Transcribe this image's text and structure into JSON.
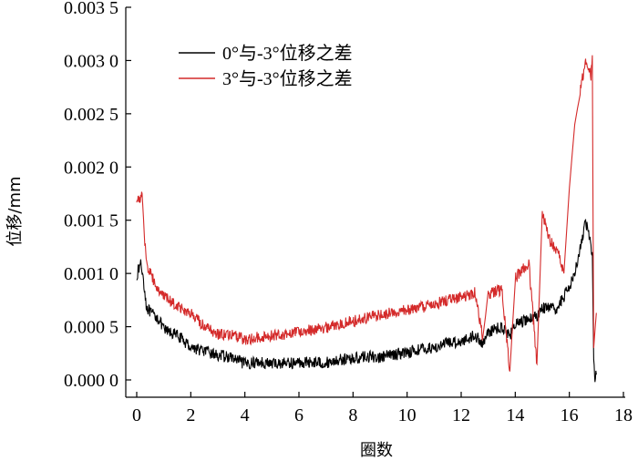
{
  "chart_data": {
    "type": "line",
    "xlabel": "圈数",
    "ylabel": "位移/mm",
    "xlim": [
      0,
      18
    ],
    "ylim": [
      0,
      0.0035
    ],
    "x_ticks": [
      "0",
      "2",
      "4",
      "6",
      "8",
      "10",
      "12",
      "14",
      "16",
      "18"
    ],
    "y_ticks": [
      "0.000 0",
      "0.000 5",
      "0.001 0",
      "0.001 5",
      "0.002 0",
      "0.002 5",
      "0.003 0",
      "0.003 5"
    ],
    "legend_position": "top-left",
    "grid": false,
    "series": [
      {
        "name": "0°与-3°位移之差",
        "color": "#000000",
        "x": [
          0,
          0.15,
          0.25,
          0.35,
          0.5,
          0.8,
          1.0,
          1.5,
          2.0,
          2.5,
          3.0,
          3.5,
          4.0,
          4.5,
          5.0,
          5.5,
          6.0,
          6.5,
          7.0,
          7.5,
          8.0,
          8.5,
          9.0,
          9.5,
          10.0,
          10.5,
          11.0,
          11.5,
          12.0,
          12.5,
          12.8,
          13.0,
          13.5,
          13.8,
          14.0,
          14.3,
          14.5,
          14.8,
          15.0,
          15.5,
          15.8,
          16.0,
          16.3,
          16.6,
          16.85,
          16.9,
          16.95,
          17.0
        ],
        "y": [
          0.00098,
          0.0011,
          0.00095,
          0.0007,
          0.00063,
          0.00058,
          0.00047,
          0.00042,
          0.00031,
          0.00027,
          0.00023,
          0.00021,
          0.00015,
          0.00017,
          0.00015,
          0.00016,
          0.00016,
          0.00017,
          0.00016,
          0.00019,
          0.0002,
          0.00022,
          0.00021,
          0.00024,
          0.00026,
          0.00029,
          0.0003,
          0.00035,
          0.00036,
          0.00042,
          0.00034,
          0.00045,
          0.0005,
          0.00042,
          0.00052,
          0.00055,
          0.00057,
          0.0006,
          0.00068,
          0.00066,
          0.00078,
          0.00088,
          0.0011,
          0.00149,
          0.0012,
          0.0002,
          2e-05,
          5e-05
        ]
      },
      {
        "name": "3°与-3°位移之差",
        "color": "#d42a2a",
        "x": [
          0,
          0.1,
          0.2,
          0.3,
          0.4,
          0.6,
          0.8,
          1.0,
          1.5,
          2.0,
          2.5,
          3.0,
          3.5,
          4.0,
          4.5,
          5.0,
          5.5,
          6.0,
          6.5,
          7.0,
          7.5,
          8.0,
          8.5,
          9.0,
          9.5,
          10.0,
          10.5,
          11.0,
          11.5,
          12.0,
          12.5,
          12.8,
          13.0,
          13.5,
          13.8,
          14.0,
          14.3,
          14.5,
          14.8,
          15.0,
          15.3,
          15.6,
          15.8,
          16.0,
          16.2,
          16.4,
          16.6,
          16.8,
          16.85,
          16.9,
          17.0
        ],
        "y": [
          0.00168,
          0.0017,
          0.00175,
          0.0013,
          0.00105,
          0.00095,
          0.00085,
          0.00078,
          0.0007,
          0.00062,
          0.0005,
          0.00043,
          0.00042,
          0.00038,
          0.0004,
          0.00042,
          0.00043,
          0.00046,
          0.00047,
          0.00049,
          0.00053,
          0.00055,
          0.00058,
          0.00061,
          0.00063,
          0.00066,
          0.00068,
          0.00071,
          0.00075,
          0.00078,
          0.00082,
          0.0004,
          0.0008,
          0.00085,
          8e-05,
          0.00095,
          0.00105,
          0.0011,
          0.00015,
          0.00155,
          0.0013,
          0.0012,
          0.001,
          0.0018,
          0.0024,
          0.0027,
          0.003,
          0.00285,
          0.00305,
          0.0003,
          0.00063
        ]
      }
    ]
  }
}
